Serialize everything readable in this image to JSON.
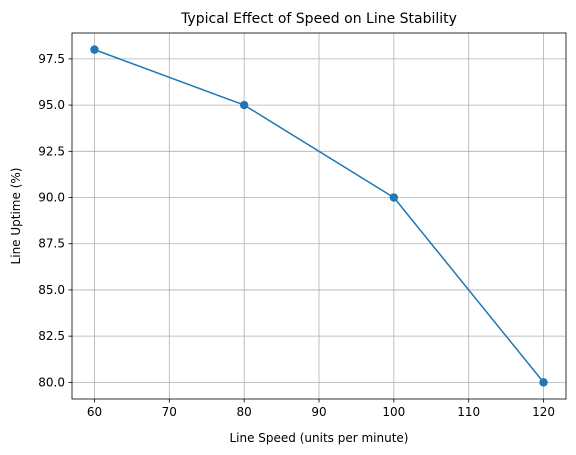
{
  "chart_data": {
    "type": "line",
    "title": "Typical Effect of Speed on Line Stability",
    "xlabel": "Line Speed (units per minute)",
    "ylabel": "Line Uptime (%)",
    "x": [
      60,
      80,
      100,
      120
    ],
    "series": [
      {
        "values": [
          98.0,
          95.0,
          90.0,
          80.0
        ],
        "color": "#1f77b4",
        "marker": "circle"
      }
    ],
    "xticks": [
      60,
      70,
      80,
      90,
      100,
      110,
      120
    ],
    "xtick_labels": [
      "60",
      "70",
      "80",
      "90",
      "100",
      "110",
      "120"
    ],
    "yticks": [
      80.0,
      82.5,
      85.0,
      87.5,
      90.0,
      92.5,
      95.0,
      97.5
    ],
    "ytick_labels": [
      "80.0",
      "82.5",
      "85.0",
      "87.5",
      "90.0",
      "92.5",
      "95.0",
      "97.5"
    ],
    "xlim": [
      57,
      123
    ],
    "ylim": [
      79.1,
      98.9
    ],
    "grid": true,
    "legend": "none"
  }
}
